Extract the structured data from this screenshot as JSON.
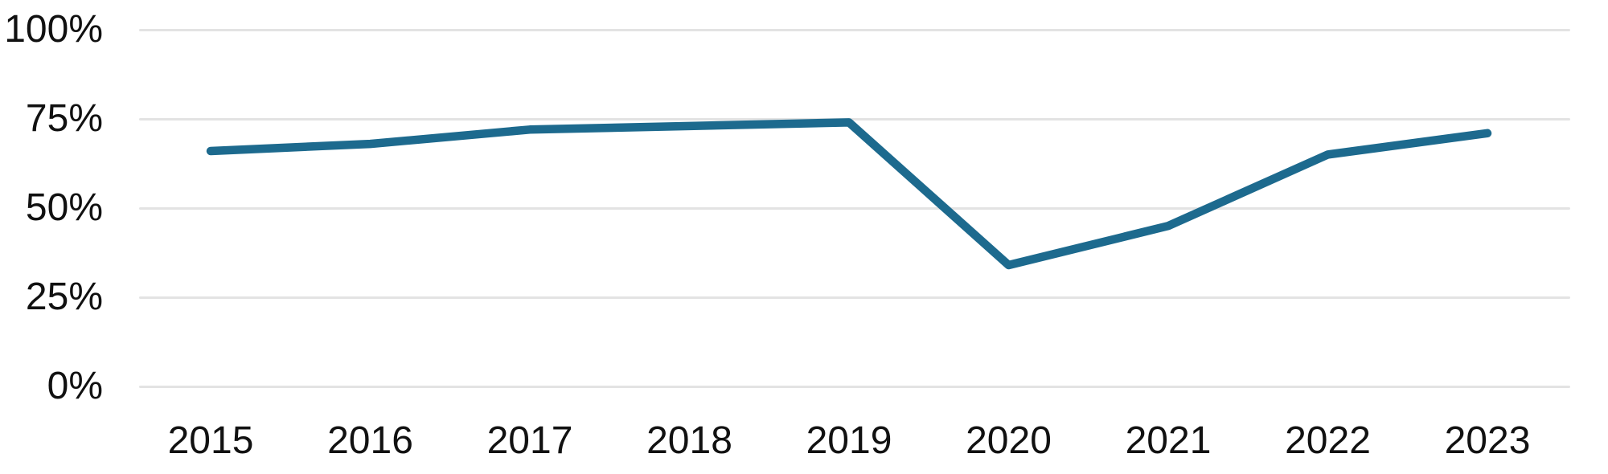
{
  "chart_data": {
    "type": "line",
    "title": "",
    "xlabel": "",
    "ylabel": "",
    "categories": [
      "2015",
      "2016",
      "2017",
      "2018",
      "2019",
      "2020",
      "2021",
      "2022",
      "2023"
    ],
    "series": [
      {
        "name": "percentage",
        "values": [
          66,
          68,
          72,
          73,
          74,
          34,
          45,
          65,
          71
        ]
      }
    ],
    "unit": "%",
    "ylim": [
      0,
      100
    ],
    "yticks": [
      100,
      75,
      50,
      25,
      0
    ],
    "ytick_labels": [
      "100%",
      "75%",
      "50%",
      "25%",
      "0%"
    ],
    "grid": "horizontal-only",
    "legend": "none",
    "colors": {
      "line": "#1d6a8e",
      "gridline": "#e3e3e3",
      "text": "#111111",
      "background": "#ffffff"
    }
  }
}
